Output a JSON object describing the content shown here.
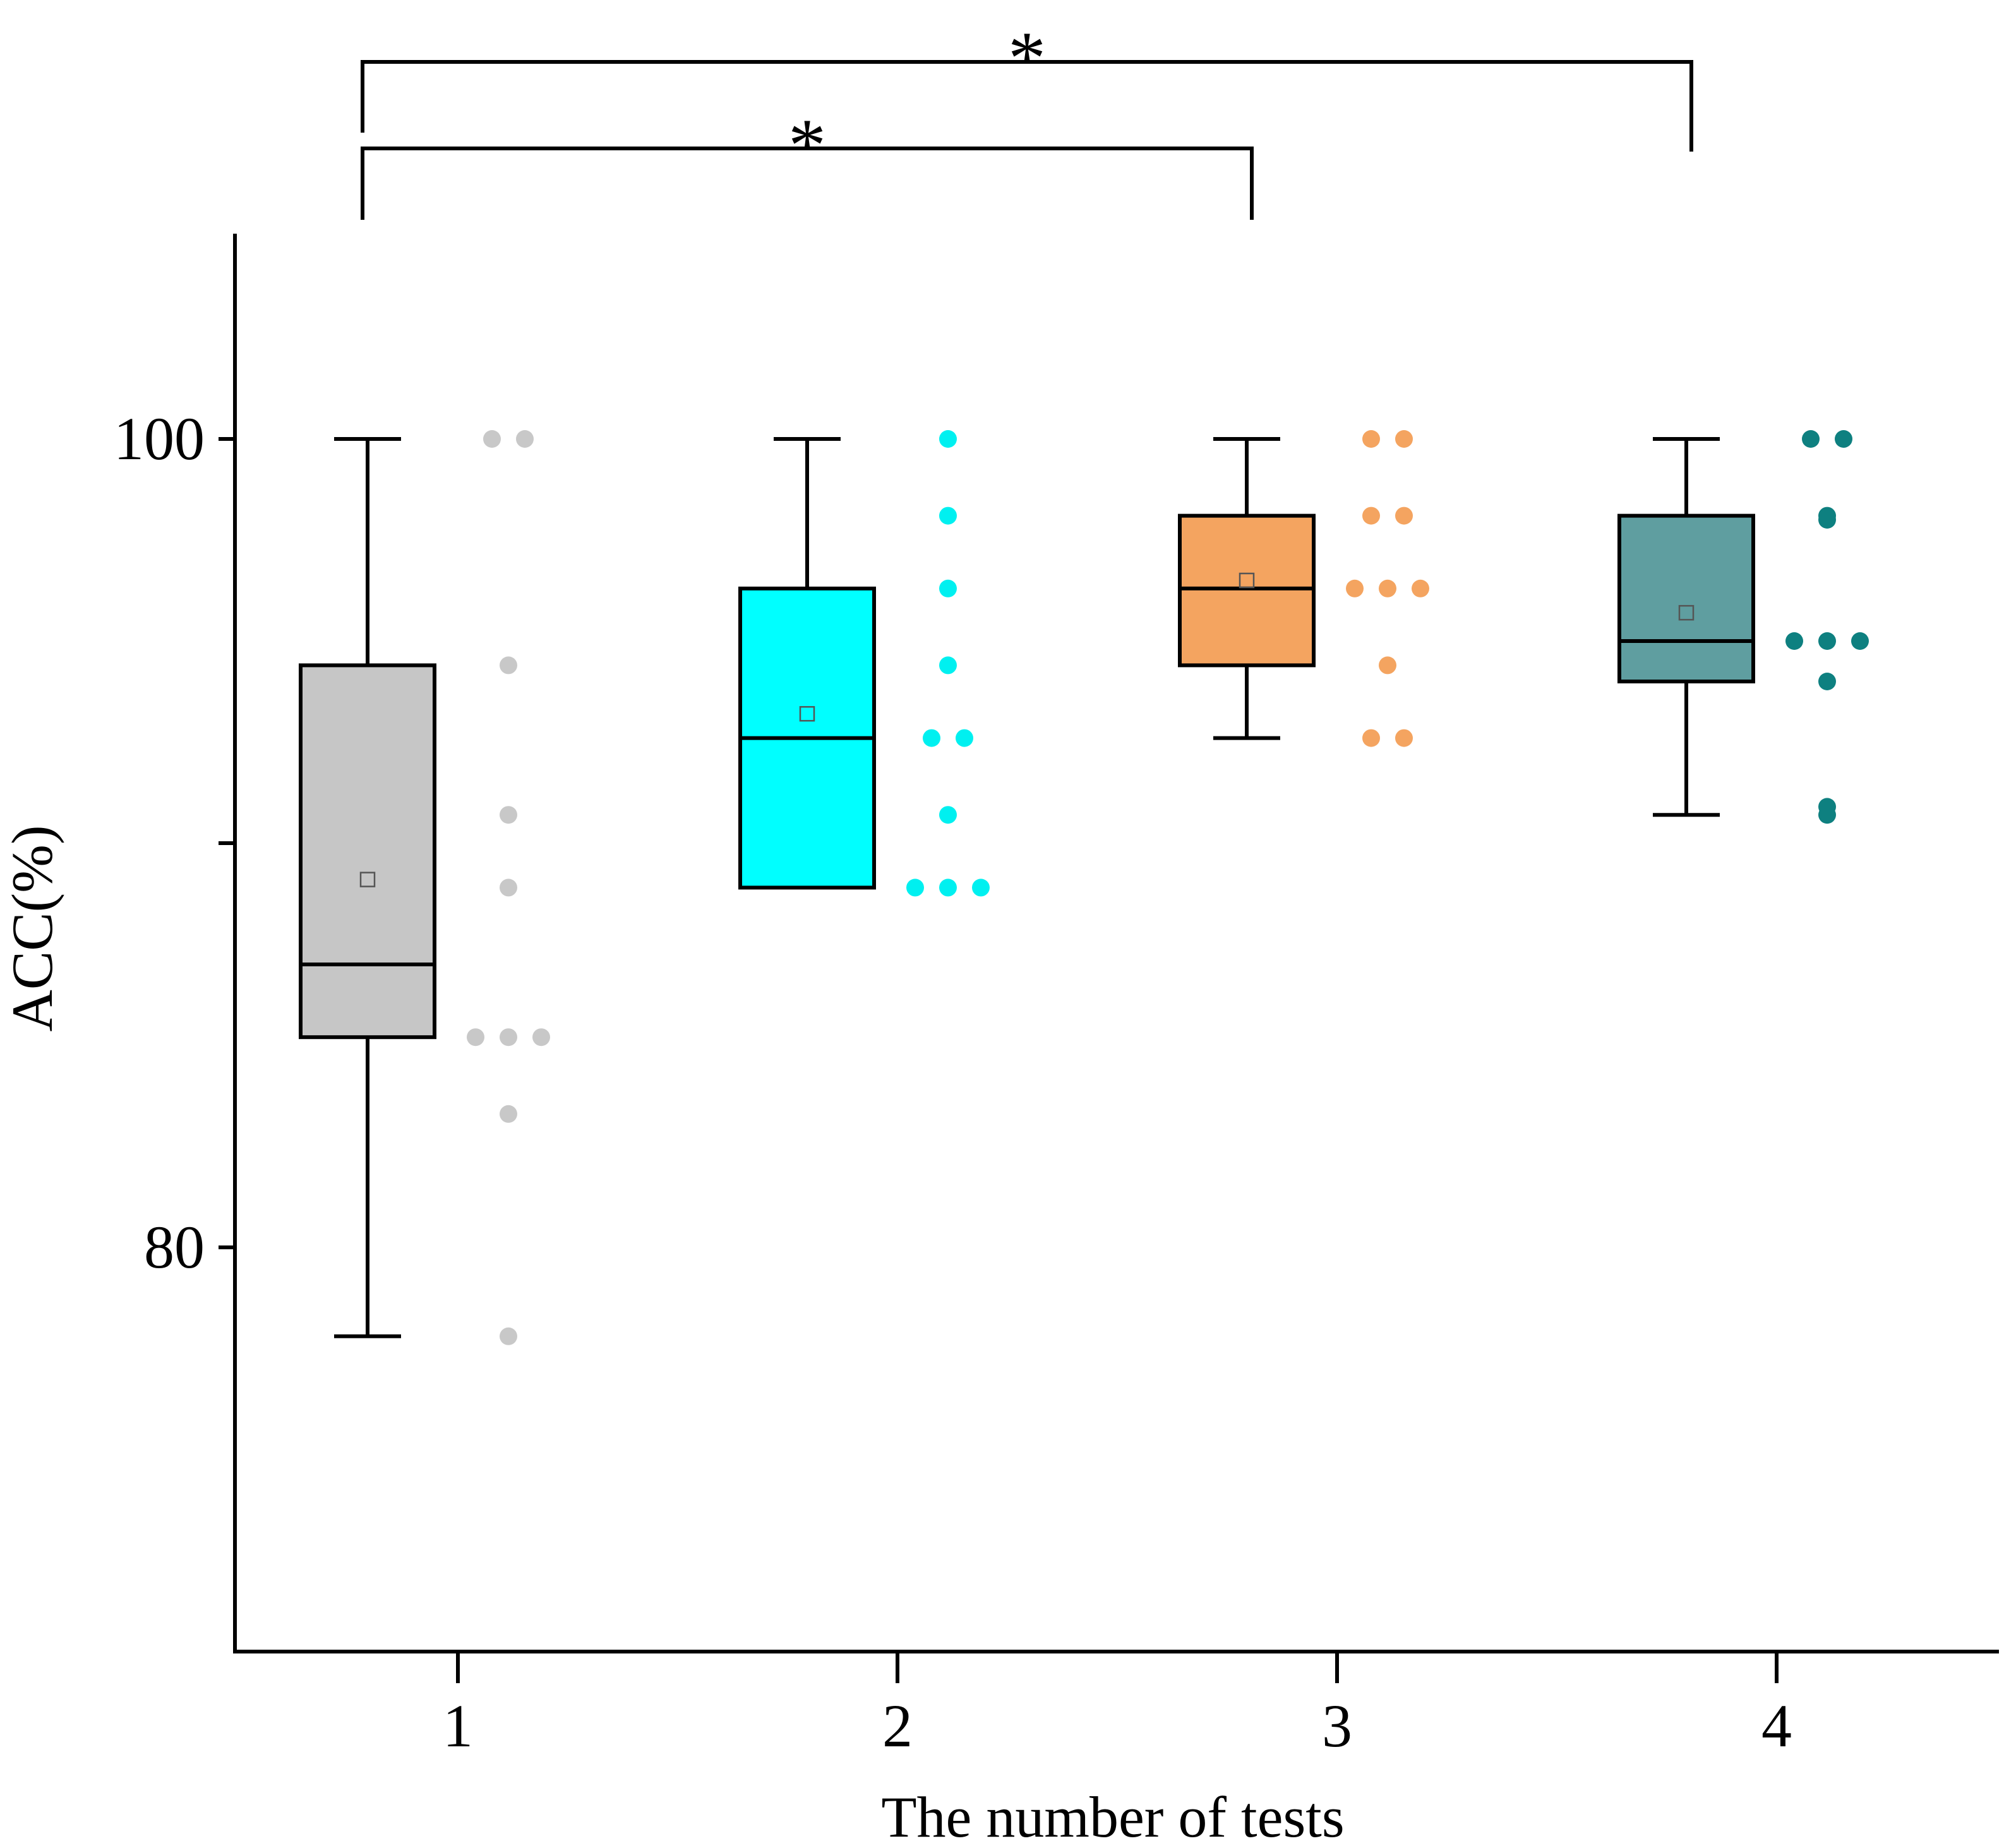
{
  "chart_data": {
    "type": "box",
    "title": "",
    "xlabel": "The number of tests",
    "ylabel": "ACC(%)",
    "ylim": [
      70,
      106
    ],
    "yticks": [
      {
        "value": 80,
        "label": "80"
      },
      {
        "value": 90,
        "label": ""
      },
      {
        "value": 100,
        "label": "100"
      }
    ],
    "categories": [
      "1",
      "2",
      "3",
      "4"
    ],
    "grid": false,
    "legend": "none",
    "series": [
      {
        "name": "1",
        "color": "#c6c6c6",
        "dot_color": "#c8c8c8",
        "whisker_low": 77.8,
        "q1": 85.2,
        "median": 87.0,
        "q3": 94.4,
        "whisker_high": 100.0,
        "mean": 89.1,
        "points": [
          100,
          100,
          94.4,
          90.7,
          88.9,
          85.2,
          85.2,
          85.2,
          83.3,
          77.8
        ]
      },
      {
        "name": "2",
        "color": "#00ffff",
        "dot_color": "#00f0f0",
        "whisker_low": 88.9,
        "q1": 88.9,
        "median": 92.6,
        "q3": 96.3,
        "whisker_high": 100.0,
        "mean": 93.2,
        "points": [
          100,
          98.1,
          96.3,
          94.4,
          92.6,
          92.6,
          90.7,
          88.9,
          88.9,
          88.9
        ]
      },
      {
        "name": "3",
        "color": "#f4a460",
        "dot_color": "#f4a460",
        "whisker_low": 92.6,
        "q1": 94.4,
        "median": 96.3,
        "q3": 98.1,
        "whisker_high": 100.0,
        "mean": 96.5,
        "points": [
          100,
          100,
          98.1,
          98.1,
          96.3,
          96.3,
          96.3,
          94.4,
          92.6,
          92.6
        ]
      },
      {
        "name": "4",
        "color": "#5f9ea0",
        "dot_color": "#0e8080",
        "whisker_low": 90.7,
        "q1": 94.0,
        "median": 95.0,
        "q3": 98.1,
        "whisker_high": 100.0,
        "mean": 95.7,
        "points": [
          100,
          100,
          98.1,
          98.0,
          95.0,
          95.0,
          95.0,
          94.0,
          90.9,
          90.7
        ]
      }
    ],
    "annotations": [
      {
        "type": "significance",
        "from": "1",
        "to": "3",
        "label": "*"
      },
      {
        "type": "significance",
        "from": "1",
        "to": "4",
        "label": "*"
      }
    ]
  }
}
